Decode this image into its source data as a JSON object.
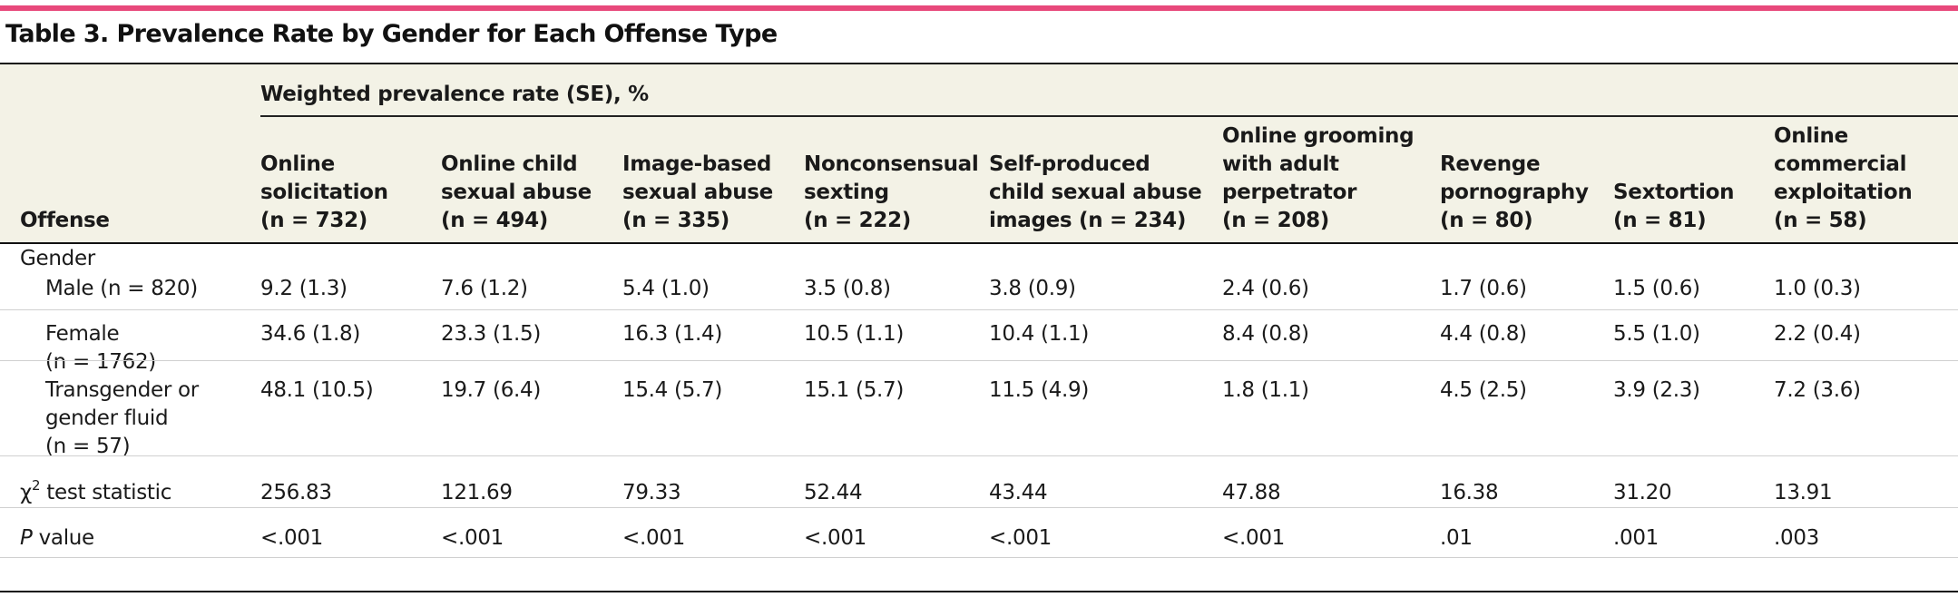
{
  "title": "Table 3. Prevalence Rate by Gender for Each Offense Type",
  "offense_header": "Offense",
  "span_header": "Weighted prevalence rate (SE), %",
  "columns": [
    {
      "lines": [
        "Online",
        "solicitation",
        "(n = 732)"
      ]
    },
    {
      "lines": [
        "Online child",
        "sexual abuse",
        "(n = 494)"
      ]
    },
    {
      "lines": [
        "Image-based",
        "sexual abuse",
        "(n = 335)"
      ]
    },
    {
      "lines": [
        "Nonconsensual",
        "sexting",
        "(n = 222)"
      ]
    },
    {
      "lines": [
        "Self-produced",
        "child sexual abuse",
        "images (n = 234)"
      ]
    },
    {
      "lines": [
        "Online grooming",
        "with adult",
        "perpetrator",
        "(n = 208)"
      ]
    },
    {
      "lines": [
        "Revenge",
        "pornography",
        "(n = 80)"
      ]
    },
    {
      "lines": [
        "Sextortion",
        "(n = 81)"
      ]
    },
    {
      "lines": [
        "Online",
        "commercial",
        "exploitation",
        "(n = 58)"
      ]
    }
  ],
  "group_label": "Gender",
  "rows": [
    {
      "label": [
        "Male (n = 820)"
      ],
      "values": [
        "9.2 (1.3)",
        "7.6 (1.2)",
        "5.4 (1.0)",
        "3.5 (0.8)",
        "3.8 (0.9)",
        "2.4 (0.6)",
        "1.7 (0.6)",
        "1.5 (0.6)",
        "1.0 (0.3)"
      ]
    },
    {
      "label": [
        "Female",
        "(n = 1762)"
      ],
      "values": [
        "34.6 (1.8)",
        "23.3 (1.5)",
        "16.3 (1.4)",
        "10.5 (1.1)",
        "10.4 (1.1)",
        "8.4 (0.8)",
        "4.4 (0.8)",
        "5.5 (1.0)",
        "2.2 (0.4)"
      ]
    },
    {
      "label": [
        "Transgender or",
        "gender fluid",
        "(n = 57)"
      ],
      "values": [
        "48.1 (10.5)",
        "19.7 (6.4)",
        "15.4 (5.7)",
        "15.1 (5.7)",
        "11.5 (4.9)",
        "1.8 (1.1)",
        "4.5 (2.5)",
        "3.9 (2.3)",
        "7.2 (3.6)"
      ]
    }
  ],
  "chi_row": {
    "symbol": "χ",
    "superscript": "2",
    "label_rest": " test statistic",
    "values": [
      "256.83",
      "121.69",
      "79.33",
      "52.44",
      "43.44",
      "47.88",
      "16.38",
      "31.20",
      "13.91"
    ]
  },
  "p_row": {
    "label_p": "P",
    "label_rest": " value",
    "values": [
      "<.001",
      "<.001",
      "<.001",
      "<.001",
      "<.001",
      "<.001",
      ".01",
      ".001",
      ".003"
    ]
  }
}
